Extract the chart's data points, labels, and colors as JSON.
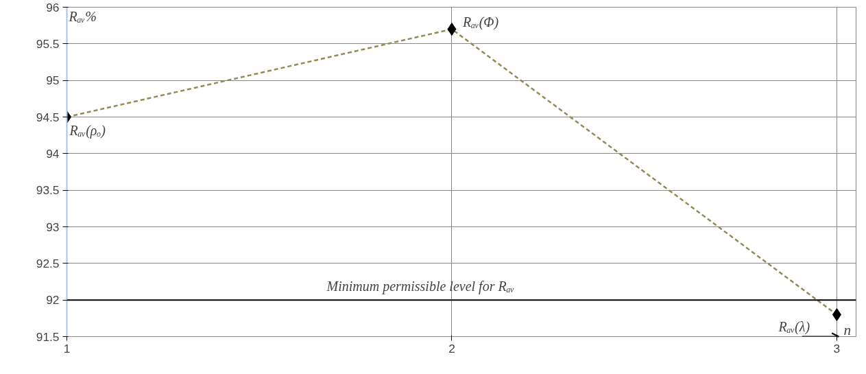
{
  "chart_data": {
    "type": "line",
    "x": [
      1,
      2,
      3
    ],
    "series": [
      {
        "color": "#948a54",
        "values": [
          94.5,
          95.7,
          91.8
        ]
      }
    ],
    "xlim": [
      1,
      3.05
    ],
    "xticks": [
      1,
      2,
      3
    ],
    "ylim": [
      91.5,
      96
    ],
    "yticks": [
      91.5,
      92,
      92.5,
      93,
      93.5,
      94,
      94.5,
      95,
      95.5,
      96
    ],
    "ylabel": "Rₐᵥ%",
    "xlabel": "n",
    "ref_lines": [
      {
        "axis": "y",
        "value": 92,
        "label": "Minimum permissible level for Rₐᵥ",
        "color": "#000000"
      }
    ],
    "annotations": [
      {
        "text": "Rₐᵥ(ρₒ)",
        "x": 1,
        "y": 94.5
      },
      {
        "text": "Rₐᵥ(Φ)",
        "x": 2,
        "y": 95.7
      },
      {
        "text": "Rₐᵥ(λ)",
        "x": 3,
        "y": 91.8
      }
    ],
    "grid": true,
    "marker": "diamond",
    "line_style": "dashed"
  }
}
